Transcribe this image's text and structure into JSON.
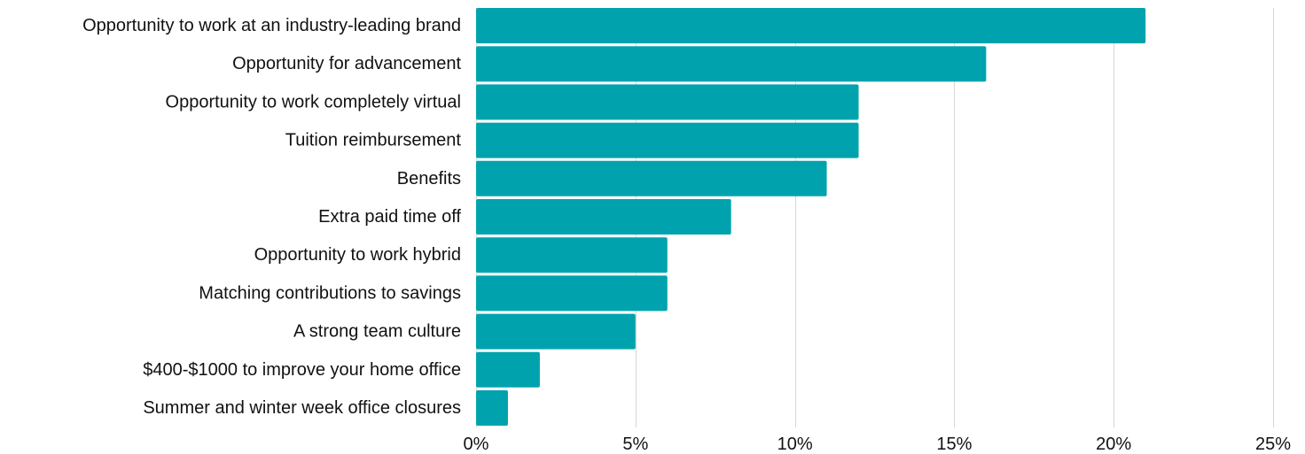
{
  "chart_data": {
    "type": "bar",
    "orientation": "horizontal",
    "categories": [
      "Opportunity to work at an industry-leading brand",
      "Opportunity for advancement",
      "Opportunity to work completely virtual",
      "Tuition reimbursement",
      "Benefits",
      "Extra paid time off",
      "Opportunity to work hybrid",
      "Matching contributions to savings",
      "A strong team culture",
      "$400-$1000 to improve your home office",
      "Summer and winter week office closures"
    ],
    "values": [
      21,
      16,
      12,
      12,
      11,
      8,
      6,
      6,
      5,
      2,
      1
    ],
    "xlim": [
      0,
      25
    ],
    "xticks": [
      0,
      5,
      10,
      15,
      20,
      25
    ],
    "xtick_labels": [
      "0%",
      "5%",
      "10%",
      "15%",
      "20%",
      "25%"
    ],
    "title": "",
    "xlabel": "",
    "ylabel": "",
    "grid": "vertical",
    "bar_color": "#00a3ad"
  }
}
